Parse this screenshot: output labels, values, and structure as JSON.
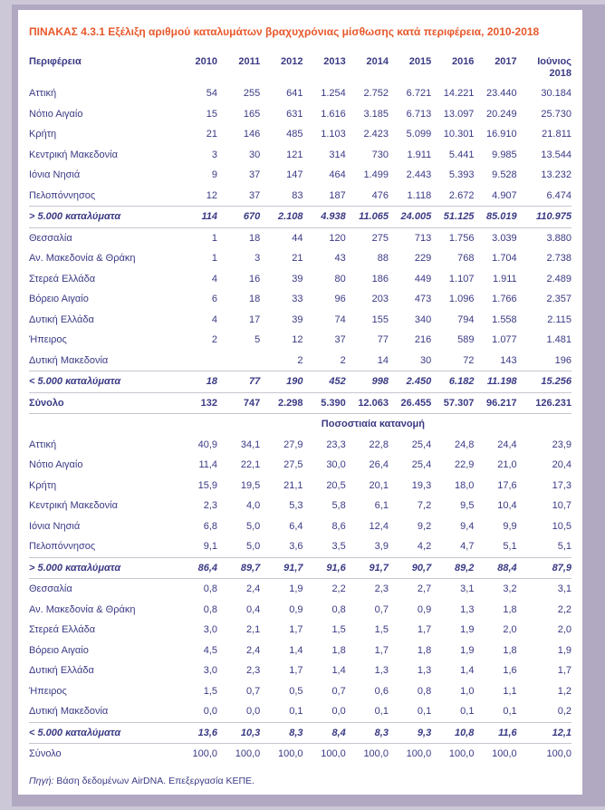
{
  "page": {
    "background_color": "#cdc8d8",
    "frame_color": "#b1a8c2",
    "card_color": "#ffffff",
    "title_color": "#e7582b",
    "text_color": "#3a3a85"
  },
  "title": "ΠΙΝΑΚΑΣ 4.3.1  Εξέλιξη αριθμού καταλυμάτων βραχυχρόνιας μίσθωσης κατά περιφέρεια, 2010-2018",
  "table": {
    "columns": [
      "Περιφέρεια",
      "2010",
      "2011",
      "2012",
      "2013",
      "2014",
      "2015",
      "2016",
      "2017",
      "Ιούνιος 2018"
    ],
    "section1_rows": [
      {
        "label": "Αττική",
        "style": "normal",
        "values": [
          "54",
          "255",
          "641",
          "1.254",
          "2.752",
          "6.721",
          "14.221",
          "23.440",
          "30.184"
        ]
      },
      {
        "label": "Νότιο Αιγαίο",
        "style": "normal",
        "values": [
          "15",
          "165",
          "631",
          "1.616",
          "3.185",
          "6.713",
          "13.097",
          "20.249",
          "25.730"
        ]
      },
      {
        "label": "Κρήτη",
        "style": "normal",
        "values": [
          "21",
          "146",
          "485",
          "1.103",
          "2.423",
          "5.099",
          "10.301",
          "16.910",
          "21.811"
        ]
      },
      {
        "label": "Κεντρική Μακεδονία",
        "style": "normal",
        "values": [
          "3",
          "30",
          "121",
          "314",
          "730",
          "1.911",
          "5.441",
          "9.985",
          "13.544"
        ]
      },
      {
        "label": "Ιόνια Νησιά",
        "style": "normal",
        "values": [
          "9",
          "37",
          "147",
          "464",
          "1.499",
          "2.443",
          "5.393",
          "9.528",
          "13.232"
        ]
      },
      {
        "label": "Πελοπόννησος",
        "style": "normal",
        "values": [
          "12",
          "37",
          "83",
          "187",
          "476",
          "1.118",
          "2.672",
          "4.907",
          "6.474"
        ]
      },
      {
        "label": "> 5.000 καταλύματα",
        "style": "agg",
        "values": [
          "114",
          "670",
          "2.108",
          "4.938",
          "11.065",
          "24.005",
          "51.125",
          "85.019",
          "110.975"
        ]
      },
      {
        "label": "Θεσσαλία",
        "style": "normal",
        "values": [
          "1",
          "18",
          "44",
          "120",
          "275",
          "713",
          "1.756",
          "3.039",
          "3.880"
        ]
      },
      {
        "label": "Αν. Μακεδονία & Θράκη",
        "style": "normal",
        "values": [
          "1",
          "3",
          "21",
          "43",
          "88",
          "229",
          "768",
          "1.704",
          "2.738"
        ]
      },
      {
        "label": "Στερεά Ελλάδα",
        "style": "normal",
        "values": [
          "4",
          "16",
          "39",
          "80",
          "186",
          "449",
          "1.107",
          "1.911",
          "2.489"
        ]
      },
      {
        "label": "Βόρειο Αιγαίο",
        "style": "normal",
        "values": [
          "6",
          "18",
          "33",
          "96",
          "203",
          "473",
          "1.096",
          "1.766",
          "2.357"
        ]
      },
      {
        "label": "Δυτική Ελλάδα",
        "style": "normal",
        "values": [
          "4",
          "17",
          "39",
          "74",
          "155",
          "340",
          "794",
          "1.558",
          "2.115"
        ]
      },
      {
        "label": "Ήπειρος",
        "style": "normal",
        "values": [
          "2",
          "5",
          "12",
          "37",
          "77",
          "216",
          "589",
          "1.077",
          "1.481"
        ]
      },
      {
        "label": "Δυτική Μακεδονία",
        "style": "normal",
        "values": [
          "",
          "",
          "2",
          "2",
          "14",
          "30",
          "72",
          "143",
          "196"
        ]
      },
      {
        "label": "< 5.000 καταλύματα",
        "style": "agg",
        "values": [
          "18",
          "77",
          "190",
          "452",
          "998",
          "2.450",
          "6.182",
          "11.198",
          "15.256"
        ]
      },
      {
        "label": "Σύνολο",
        "style": "total",
        "values": [
          "132",
          "747",
          "2.298",
          "5.390",
          "12.063",
          "26.455",
          "57.307",
          "96.217",
          "126.231"
        ]
      }
    ],
    "section2_label": "Ποσοστιαία κατανομή",
    "section2_rows": [
      {
        "label": "Αττική",
        "style": "normal",
        "values": [
          "40,9",
          "34,1",
          "27,9",
          "23,3",
          "22,8",
          "25,4",
          "24,8",
          "24,4",
          "23,9"
        ]
      },
      {
        "label": "Νότιο Αιγαίο",
        "style": "normal",
        "values": [
          "11,4",
          "22,1",
          "27,5",
          "30,0",
          "26,4",
          "25,4",
          "22,9",
          "21,0",
          "20,4"
        ]
      },
      {
        "label": "Κρήτη",
        "style": "normal",
        "values": [
          "15,9",
          "19,5",
          "21,1",
          "20,5",
          "20,1",
          "19,3",
          "18,0",
          "17,6",
          "17,3"
        ]
      },
      {
        "label": "Κεντρική Μακεδονία",
        "style": "normal",
        "values": [
          "2,3",
          "4,0",
          "5,3",
          "5,8",
          "6,1",
          "7,2",
          "9,5",
          "10,4",
          "10,7"
        ]
      },
      {
        "label": "Ιόνια Νησιά",
        "style": "normal",
        "values": [
          "6,8",
          "5,0",
          "6,4",
          "8,6",
          "12,4",
          "9,2",
          "9,4",
          "9,9",
          "10,5"
        ]
      },
      {
        "label": "Πελοπόννησος",
        "style": "normal",
        "values": [
          "9,1",
          "5,0",
          "3,6",
          "3,5",
          "3,9",
          "4,2",
          "4,7",
          "5,1",
          "5,1"
        ]
      },
      {
        "label": "> 5.000 καταλύματα",
        "style": "agg",
        "values": [
          "86,4",
          "89,7",
          "91,7",
          "91,6",
          "91,7",
          "90,7",
          "89,2",
          "88,4",
          "87,9"
        ]
      },
      {
        "label": "Θεσσαλία",
        "style": "normal",
        "values": [
          "0,8",
          "2,4",
          "1,9",
          "2,2",
          "2,3",
          "2,7",
          "3,1",
          "3,2",
          "3,1"
        ]
      },
      {
        "label": "Αν. Μακεδονία & Θράκη",
        "style": "normal",
        "values": [
          "0,8",
          "0,4",
          "0,9",
          "0,8",
          "0,7",
          "0,9",
          "1,3",
          "1,8",
          "2,2"
        ]
      },
      {
        "label": "Στερεά Ελλάδα",
        "style": "normal",
        "values": [
          "3,0",
          "2,1",
          "1,7",
          "1,5",
          "1,5",
          "1,7",
          "1,9",
          "2,0",
          "2,0"
        ]
      },
      {
        "label": "Βόρειο Αιγαίο",
        "style": "normal",
        "values": [
          "4,5",
          "2,4",
          "1,4",
          "1,8",
          "1,7",
          "1,8",
          "1,9",
          "1,8",
          "1,9"
        ]
      },
      {
        "label": "Δυτική Ελλάδα",
        "style": "normal",
        "values": [
          "3,0",
          "2,3",
          "1,7",
          "1,4",
          "1,3",
          "1,3",
          "1,4",
          "1,6",
          "1,7"
        ]
      },
      {
        "label": "Ήπειρος",
        "style": "normal",
        "values": [
          "1,5",
          "0,7",
          "0,5",
          "0,7",
          "0,6",
          "0,8",
          "1,0",
          "1,1",
          "1,2"
        ]
      },
      {
        "label": "Δυτική Μακεδονία",
        "style": "normal",
        "values": [
          "0,0",
          "0,0",
          "0,1",
          "0,0",
          "0,1",
          "0,1",
          "0,1",
          "0,1",
          "0,2"
        ]
      },
      {
        "label": "< 5.000 καταλύματα",
        "style": "agg",
        "values": [
          "13,6",
          "10,3",
          "8,3",
          "8,4",
          "8,3",
          "9,3",
          "10,8",
          "11,6",
          "12,1"
        ]
      },
      {
        "label": "Σύνολο",
        "style": "total-plain",
        "values": [
          "100,0",
          "100,0",
          "100,0",
          "100,0",
          "100,0",
          "100,0",
          "100,0",
          "100,0",
          "100,0"
        ]
      }
    ]
  },
  "source_note": {
    "label": "Πηγή:",
    "text": "Βάση δεδομένων AirDNA. Επεξεργασία ΚΕΠΕ."
  }
}
